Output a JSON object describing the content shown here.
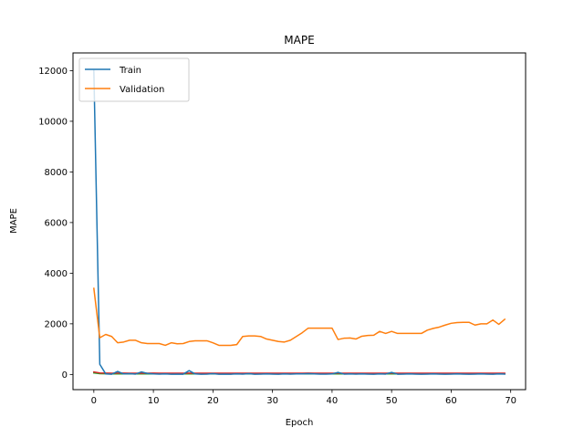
{
  "chart_data": {
    "type": "line",
    "title": "MAPE",
    "xlabel": "Epoch",
    "ylabel": "MAPE",
    "xlim": [
      -3.5,
      72.5
    ],
    "ylim": [
      -600,
      12700
    ],
    "xticks": [
      0,
      10,
      20,
      30,
      40,
      50,
      60,
      70
    ],
    "yticks": [
      0,
      2000,
      4000,
      6000,
      8000,
      10000,
      12000
    ],
    "grid": false,
    "legend_position": "top-left",
    "series": [
      {
        "name": "Train",
        "color": "#1f77b4",
        "x": [
          0,
          1,
          2,
          3,
          4,
          5,
          6,
          7,
          8,
          9,
          10,
          11,
          12,
          13,
          14,
          15,
          16,
          17,
          18,
          19,
          20,
          21,
          22,
          23,
          24,
          25,
          26,
          27,
          28,
          29,
          30,
          31,
          32,
          33,
          34,
          35,
          36,
          37,
          38,
          39,
          40,
          41,
          42,
          43,
          44,
          45,
          46,
          47,
          48,
          49,
          50,
          51,
          52,
          53,
          54,
          55,
          56,
          57,
          58,
          59,
          60,
          61,
          62,
          63,
          64,
          65,
          66,
          67,
          68,
          69
        ],
        "y": [
          12000,
          400,
          20,
          10,
          120,
          20,
          30,
          15,
          100,
          40,
          20,
          15,
          20,
          10,
          15,
          10,
          150,
          20,
          10,
          15,
          30,
          10,
          15,
          10,
          20,
          15,
          30,
          10,
          15,
          20,
          15,
          10,
          20,
          15,
          20,
          20,
          30,
          20,
          15,
          15,
          20,
          80,
          15,
          20,
          15,
          20,
          15,
          10,
          20,
          15,
          80,
          10,
          15,
          20,
          15,
          10,
          15,
          20,
          15,
          10,
          15,
          20,
          15,
          10,
          15,
          20,
          15,
          10,
          20,
          15
        ]
      },
      {
        "name": "Validation",
        "color": "#ff7f0e",
        "x": [
          0,
          1,
          2,
          3,
          4,
          5,
          6,
          7,
          8,
          9,
          10,
          11,
          12,
          13,
          14,
          15,
          16,
          17,
          18,
          19,
          20,
          21,
          22,
          23,
          24,
          25,
          26,
          27,
          28,
          29,
          30,
          31,
          32,
          33,
          34,
          35,
          36,
          37,
          38,
          39,
          40,
          41,
          42,
          43,
          44,
          45,
          46,
          47,
          48,
          49,
          50,
          51,
          52,
          53,
          54,
          55,
          56,
          57,
          58,
          59,
          60,
          61,
          62,
          63,
          64,
          65,
          66,
          67,
          68,
          69
        ],
        "y": [
          3400,
          1450,
          1580,
          1500,
          1250,
          1280,
          1350,
          1350,
          1250,
          1220,
          1220,
          1220,
          1150,
          1250,
          1210,
          1220,
          1300,
          1330,
          1330,
          1330,
          1250,
          1150,
          1150,
          1150,
          1180,
          1500,
          1520,
          1520,
          1500,
          1400,
          1350,
          1300,
          1280,
          1350,
          1500,
          1650,
          1830,
          1830,
          1830,
          1830,
          1830,
          1380,
          1430,
          1440,
          1400,
          1510,
          1540,
          1550,
          1700,
          1620,
          1700,
          1620,
          1620,
          1620,
          1620,
          1620,
          1750,
          1820,
          1870,
          1950,
          2020,
          2050,
          2060,
          2060,
          1950,
          2000,
          2000,
          2150,
          1980,
          2180
        ]
      },
      {
        "color": "#2ca02c",
        "x": [
          0,
          1,
          2,
          3,
          4,
          5,
          6,
          7,
          8,
          9,
          10,
          11,
          12,
          13,
          14,
          15,
          16,
          17,
          18,
          19,
          20,
          21,
          22,
          23,
          24,
          25,
          26,
          27,
          28,
          29,
          30,
          31,
          32,
          33,
          34,
          35,
          36,
          37,
          38,
          39,
          40,
          41,
          42,
          43,
          44,
          45,
          46,
          47,
          48,
          49,
          50,
          51,
          52,
          53,
          54,
          55,
          56,
          57,
          58,
          59,
          60,
          61,
          62,
          63,
          64,
          65,
          66,
          67,
          68,
          69
        ],
        "y": [
          60,
          30,
          25,
          20,
          20,
          25,
          20,
          20,
          25,
          20,
          20,
          20,
          20,
          20,
          20,
          20,
          25,
          20,
          20,
          20,
          20,
          20,
          20,
          20,
          20,
          20,
          20,
          20,
          20,
          20,
          20,
          20,
          20,
          20,
          20,
          20,
          20,
          20,
          20,
          20,
          20,
          20,
          20,
          20,
          20,
          20,
          20,
          20,
          20,
          20,
          20,
          20,
          20,
          20,
          20,
          20,
          20,
          20,
          20,
          20,
          20,
          20,
          20,
          20,
          20,
          20,
          20,
          20,
          20,
          20
        ]
      },
      {
        "color": "#d62728",
        "x": [
          0,
          1,
          2,
          3,
          4,
          5,
          6,
          7,
          8,
          9,
          10,
          11,
          12,
          13,
          14,
          15,
          16,
          17,
          18,
          19,
          20,
          21,
          22,
          23,
          24,
          25,
          26,
          27,
          28,
          29,
          30,
          31,
          32,
          33,
          34,
          35,
          36,
          37,
          38,
          39,
          40,
          41,
          42,
          43,
          44,
          45,
          46,
          47,
          48,
          49,
          50,
          51,
          52,
          53,
          54,
          55,
          56,
          57,
          58,
          59,
          60,
          61,
          62,
          63,
          64,
          65,
          66,
          67,
          68,
          69
        ],
        "y": [
          100,
          60,
          55,
          50,
          55,
          55,
          50,
          50,
          50,
          50,
          55,
          50,
          50,
          50,
          50,
          50,
          55,
          50,
          50,
          50,
          50,
          50,
          50,
          50,
          50,
          50,
          50,
          50,
          50,
          50,
          50,
          50,
          50,
          50,
          50,
          50,
          55,
          50,
          50,
          50,
          50,
          50,
          50,
          50,
          50,
          50,
          50,
          50,
          50,
          50,
          55,
          50,
          50,
          50,
          50,
          50,
          50,
          50,
          50,
          50,
          50,
          50,
          50,
          50,
          50,
          50,
          50,
          50,
          50,
          50
        ]
      }
    ]
  }
}
